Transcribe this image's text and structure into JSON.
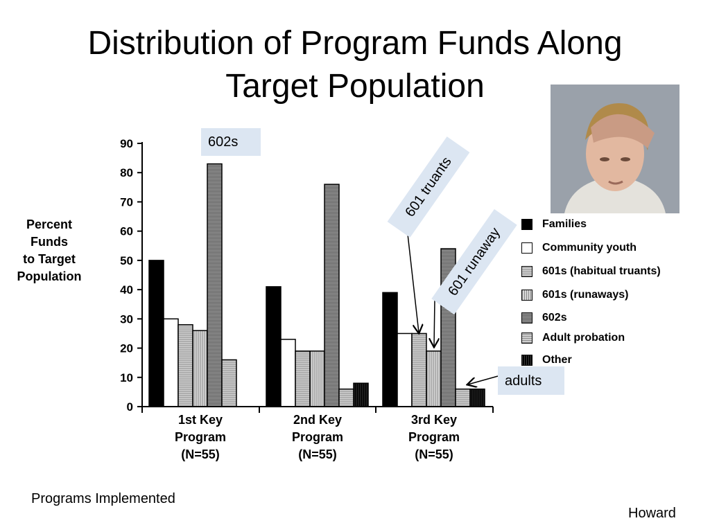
{
  "slide": {
    "title_line1": "Distribution of Program Funds Along",
    "title_line2": "Target Population",
    "footer_left": "Programs Implemented",
    "footer_right": "Howard"
  },
  "callouts": {
    "c602s": "602s",
    "c601_truants": "601 truants",
    "c601_runaway": "601 runaway",
    "c_adults": "adults"
  },
  "colors": {
    "callout_bg": "#dce6f2",
    "families": "#000000",
    "community_youth": "#ffffff",
    "habitual_truants": "#b3b3b3",
    "runaways": "#c8c8c8",
    "602s": "#8a8a8a",
    "adult_probation": "#a8a8a8",
    "other": "#101010"
  },
  "chart_data": {
    "type": "bar",
    "ylabel_lines": [
      "Percent",
      "Funds",
      "to Target",
      "Population"
    ],
    "ylim": [
      0,
      90
    ],
    "yticks": [
      0,
      10,
      20,
      30,
      40,
      50,
      60,
      70,
      80,
      90
    ],
    "categories": [
      [
        "1st Key",
        "Program",
        "(N=55)"
      ],
      [
        "2nd Key",
        "Program",
        "(N=55)"
      ],
      [
        "3rd Key",
        "Program",
        "(N=55)"
      ]
    ],
    "legend_position": "right",
    "series": [
      {
        "name": "Families",
        "values": [
          50,
          41,
          39
        ]
      },
      {
        "name": "Community youth",
        "values": [
          30,
          23,
          25
        ]
      },
      {
        "name": "601s (habitual truants)",
        "values": [
          28,
          19,
          25
        ]
      },
      {
        "name": "601s (runaways)",
        "values": [
          26,
          19,
          19
        ]
      },
      {
        "name": "602s",
        "values": [
          83,
          76,
          54
        ]
      },
      {
        "name": "Adult probation",
        "values": [
          16,
          6,
          6
        ]
      },
      {
        "name": "Other",
        "values": [
          0,
          8,
          6
        ]
      }
    ]
  }
}
